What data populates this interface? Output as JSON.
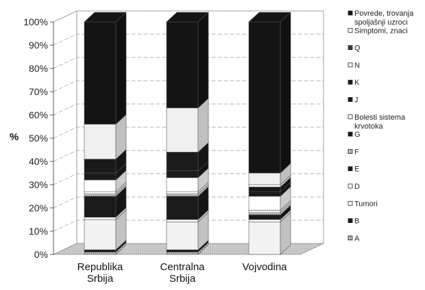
{
  "chart_data": {
    "type": "bar",
    "stacked": true,
    "percent": true,
    "three_d": true,
    "ylabel": "%",
    "ylim": [
      0,
      100
    ],
    "yticks": [
      "0%",
      "10%",
      "20%",
      "30%",
      "40%",
      "50%",
      "60%",
      "70%",
      "80%",
      "90%",
      "100%"
    ],
    "categories": [
      [
        "Republika",
        "Srbija"
      ],
      [
        "Centralna",
        "Srbija"
      ],
      [
        "Vojvodina"
      ]
    ],
    "legend_position": "right",
    "series": [
      {
        "name": "A",
        "color": "#9a9a9a",
        "pattern": "dots",
        "values": [
          1,
          1,
          0
        ]
      },
      {
        "name": "B",
        "color": "#1a1a1a",
        "values": [
          1,
          1,
          0
        ]
      },
      {
        "name": "Tumori",
        "color": "#f2f2f2",
        "values": [
          13,
          12,
          14
        ]
      },
      {
        "name": "D",
        "color": "#ffffff",
        "values": [
          1,
          1,
          1
        ]
      },
      {
        "name": "E",
        "color": "#1a1a1a",
        "values": [
          9,
          10,
          2
        ]
      },
      {
        "name": "F",
        "color": "#bdbdbd",
        "pattern": "dots",
        "values": [
          1,
          1,
          1
        ]
      },
      {
        "name": "D",
        "color": "#ffffff",
        "values": [
          1,
          1,
          1
        ]
      },
      {
        "name": "Bolesti sistema krvotoka",
        "color": "#ffffff",
        "values": [
          5,
          6,
          6
        ]
      },
      {
        "name": "K",
        "color": "#1a1a1a",
        "values": [
          3,
          3,
          2
        ]
      },
      {
        "name": "J",
        "color": "#1a1a1a",
        "values": [
          6,
          8,
          2
        ]
      },
      {
        "name": "N",
        "color": "#ffffff",
        "values": [
          0,
          0,
          1
        ]
      },
      {
        "name": "Simptomi, znaci",
        "color": "#f0f0f0",
        "values": [
          15,
          19,
          5
        ]
      },
      {
        "name": "Povrede, trovanja spoljašnji uzroci",
        "color": "#141414",
        "values": [
          44,
          37,
          65
        ]
      }
    ],
    "legend": [
      {
        "label": "Povrede, trovanja spoljašnji uzroci",
        "color": "#141414"
      },
      {
        "label": "Simptomi, znaci",
        "color": "#ffffff"
      },
      {
        "label": "Q",
        "color": "#3a3a3a"
      },
      {
        "label": "N",
        "color": "#ffffff"
      },
      {
        "label": "K",
        "color": "#1a1a1a"
      },
      {
        "label": "J",
        "color": "#1a1a1a"
      },
      {
        "label": "Bolesti sistema krvotoka",
        "color": "#ffffff"
      },
      {
        "label": "G",
        "color": "#1a1a1a"
      },
      {
        "label": "F",
        "color": "#bdbdbd"
      },
      {
        "label": "E",
        "color": "#1a1a1a"
      },
      {
        "label": "D",
        "color": "#ffffff"
      },
      {
        "label": "Tumori",
        "color": "#ffffff"
      },
      {
        "label": "B",
        "color": "#1a1a1a"
      },
      {
        "label": "A",
        "color": "#9a9a9a"
      }
    ]
  }
}
